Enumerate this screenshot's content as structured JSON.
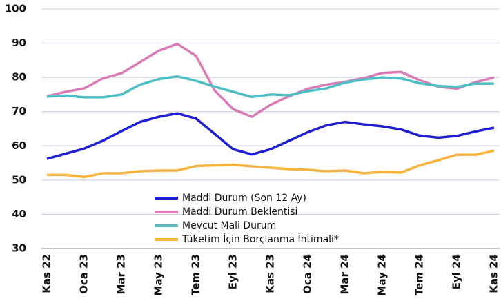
{
  "chart_data": {
    "type": "line",
    "categories": [
      "Kas 22",
      null,
      "Oca 23",
      null,
      "Mar 23",
      null,
      "May 23",
      null,
      "Tem 23",
      null,
      "Eyl 23",
      null,
      "Kas 23",
      null,
      "Oca 24",
      null,
      "Mar 24",
      null,
      "May 24",
      null,
      "Tem 24",
      null,
      "Eyl 24",
      null,
      "Kas 24"
    ],
    "series": [
      {
        "name": "Maddi Durum (Son 12 Ay)",
        "color": "#1f1fd1",
        "values": [
          56.2,
          57.7,
          59.2,
          61.5,
          64.3,
          67.0,
          68.5,
          69.5,
          68.0,
          63.5,
          59.0,
          57.5,
          59.0,
          61.5,
          64.0,
          66.0,
          67.0,
          66.3,
          65.7,
          64.8,
          63.0,
          62.4,
          62.9,
          64.2,
          65.3
        ]
      },
      {
        "name": "Maddi Durum Beklentisi",
        "color": "#d97bb5",
        "values": [
          74.5,
          75.8,
          76.8,
          79.7,
          81.2,
          84.5,
          87.8,
          89.8,
          86.3,
          76.2,
          70.7,
          68.5,
          72.0,
          74.5,
          76.7,
          77.9,
          78.7,
          79.8,
          81.3,
          81.6,
          79.2,
          77.3,
          76.7,
          78.6,
          80.0
        ]
      },
      {
        "name": "Mevcut Mali Durum",
        "color": "#4dbfc4",
        "values": [
          74.4,
          74.7,
          74.2,
          74.2,
          75.0,
          77.9,
          79.5,
          80.3,
          79.0,
          77.3,
          75.8,
          74.3,
          75.0,
          74.8,
          76.0,
          76.8,
          78.5,
          79.4,
          80.0,
          79.7,
          78.3,
          77.5,
          77.2,
          78.2,
          78.2
        ]
      },
      {
        "name": "Tüketim İçin Borçlanma İhtimali*",
        "color": "#f8b33c",
        "values": [
          51.5,
          51.5,
          50.9,
          52.0,
          52.0,
          52.6,
          52.8,
          52.8,
          54.1,
          54.3,
          54.5,
          54.0,
          53.6,
          53.2,
          53.0,
          52.6,
          52.8,
          52.0,
          52.4,
          52.2,
          54.3,
          55.8,
          57.4,
          57.4,
          58.6
        ]
      }
    ],
    "ylim": [
      30,
      100
    ],
    "yticks": [
      30,
      40,
      50,
      60,
      70,
      80,
      90,
      100
    ],
    "grid": true,
    "legend": "bottom-center"
  }
}
